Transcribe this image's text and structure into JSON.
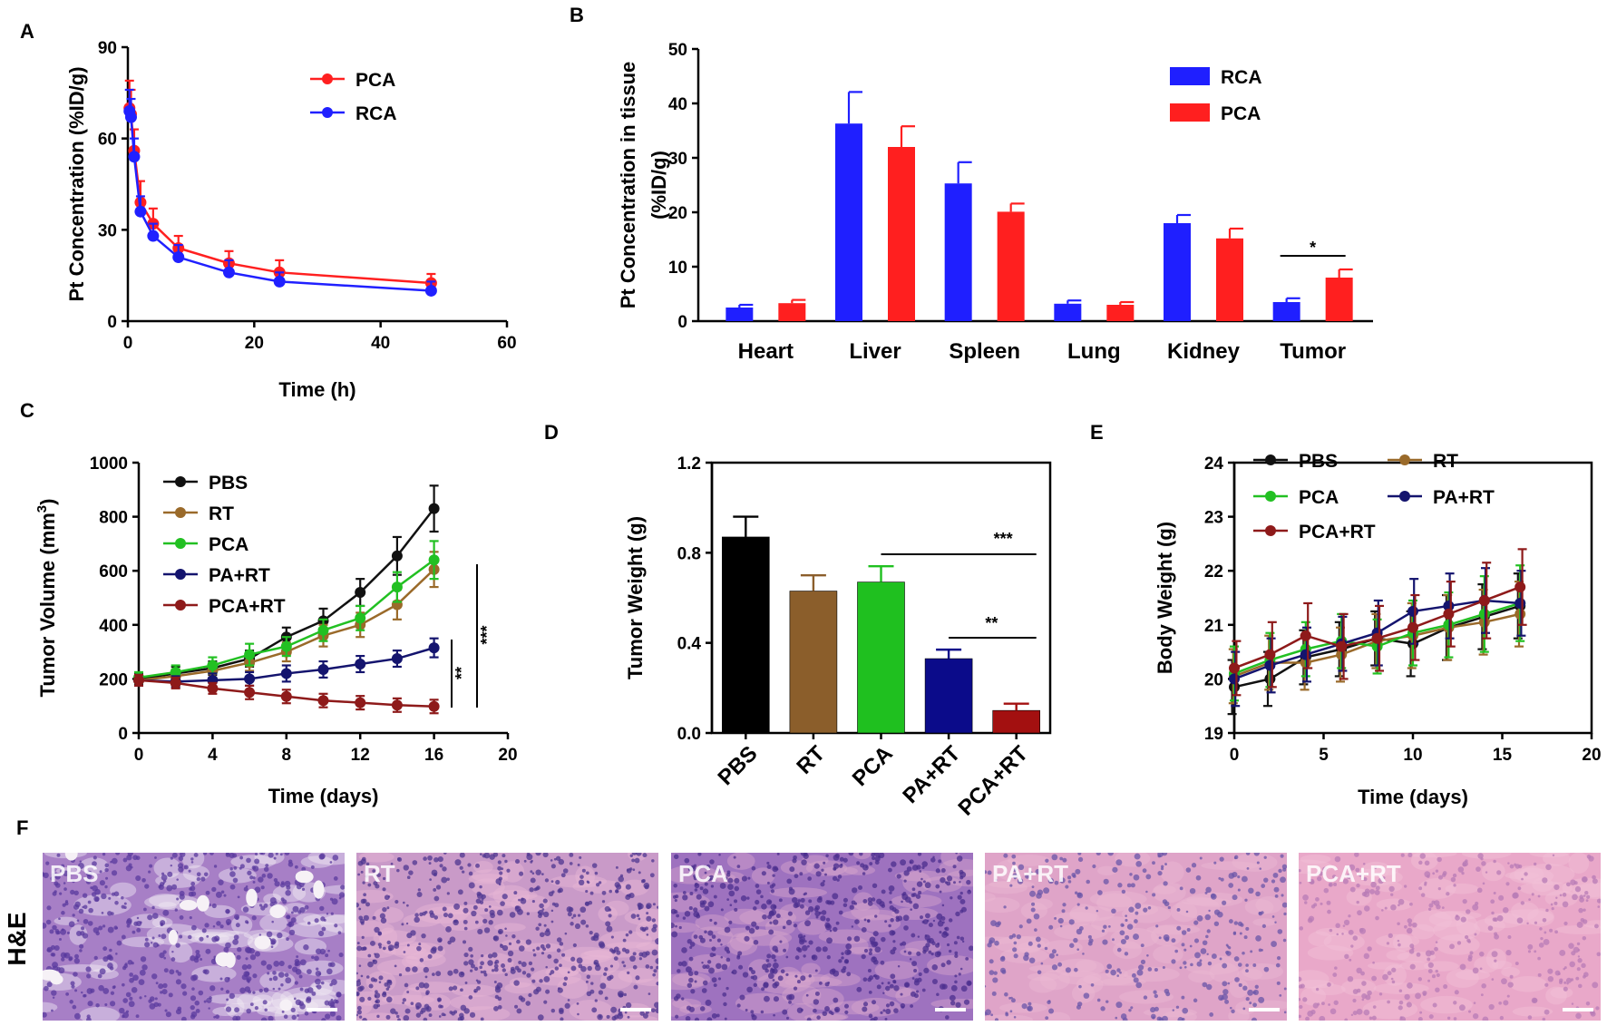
{
  "panel_labels": [
    "A",
    "B",
    "C",
    "D",
    "E",
    "F"
  ],
  "chart_data": [
    {
      "id": "A",
      "type": "line",
      "xlabel": "Time (h)",
      "ylabel": "Pt Concentration (%ID/g)",
      "xlim": [
        0,
        60
      ],
      "ylim": [
        0,
        90
      ],
      "xticks": [
        0,
        20,
        40,
        60
      ],
      "yticks": [
        0,
        30,
        60,
        90
      ],
      "x": [
        0.25,
        0.5,
        1,
        2,
        4,
        8,
        16,
        24,
        48
      ],
      "series": [
        {
          "name": "PCA",
          "color": "#ff2020",
          "values": [
            70,
            68,
            56,
            39,
            32,
            24,
            19,
            16,
            12.5
          ],
          "err": [
            9,
            8,
            7,
            7,
            5,
            4,
            4,
            4,
            3
          ]
        },
        {
          "name": "RCA",
          "color": "#2020ff",
          "values": [
            69,
            67,
            54,
            36,
            28,
            21,
            16,
            13,
            10
          ],
          "err": [
            7,
            6,
            6,
            5,
            4,
            4,
            4,
            3,
            3
          ]
        }
      ],
      "legend_position": "top-right"
    },
    {
      "id": "B",
      "type": "bar",
      "ylabel_lines": [
        "Pt Concentration in tissue",
        "(%ID/g)"
      ],
      "ylim": [
        0,
        50
      ],
      "yticks": [
        0,
        10,
        20,
        30,
        40,
        50
      ],
      "categories": [
        "Heart",
        "Liver",
        "Spleen",
        "Lung",
        "Kidney",
        "Tumor"
      ],
      "series": [
        {
          "name": "RCA",
          "color": "#1f1fff",
          "values": [
            2.5,
            36.3,
            25.3,
            3.2,
            18,
            3.5
          ],
          "err": [
            0.5,
            5.8,
            3.9,
            0.6,
            1.5,
            0.7
          ]
        },
        {
          "name": "PCA",
          "color": "#ff1f1f",
          "values": [
            3.3,
            32,
            20.1,
            3,
            15.2,
            8
          ],
          "err": [
            0.6,
            3.8,
            1.5,
            0.5,
            1.8,
            1.5
          ]
        }
      ],
      "annotations": [
        {
          "text": "*",
          "category": "Tumor"
        }
      ],
      "legend_position": "top-right"
    },
    {
      "id": "C",
      "type": "line",
      "xlabel": "Time (days)",
      "ylabel": "Tumor Volume (mm",
      "ylabel_sup": "3",
      "ylabel_end": ")",
      "xlim": [
        0,
        20
      ],
      "ylim": [
        0,
        1000
      ],
      "xticks": [
        0,
        4,
        8,
        12,
        16,
        20
      ],
      "yticks": [
        0,
        200,
        400,
        600,
        800,
        1000
      ],
      "x": [
        0,
        2,
        4,
        6,
        8,
        10,
        12,
        14,
        16
      ],
      "series": [
        {
          "name": "PBS",
          "color": "#111111",
          "values": [
            200,
            220,
            240,
            275,
            355,
            415,
            520,
            655,
            830
          ],
          "err": [
            20,
            25,
            25,
            30,
            35,
            45,
            50,
            70,
            85
          ]
        },
        {
          "name": "RT",
          "color": "#9a6a2a",
          "values": [
            195,
            210,
            230,
            260,
            300,
            360,
            400,
            475,
            605
          ],
          "err": [
            20,
            25,
            25,
            30,
            35,
            40,
            45,
            55,
            65
          ]
        },
        {
          "name": "PCA",
          "color": "#22c022",
          "values": [
            205,
            225,
            250,
            290,
            320,
            380,
            425,
            540,
            640
          ],
          "err": [
            20,
            25,
            30,
            40,
            35,
            40,
            45,
            55,
            70
          ]
        },
        {
          "name": "PA+RT",
          "color": "#14146e",
          "values": [
            195,
            190,
            195,
            200,
            220,
            235,
            255,
            275,
            315
          ],
          "err": [
            20,
            20,
            25,
            25,
            30,
            30,
            30,
            30,
            35
          ]
        },
        {
          "name": "PCA+RT",
          "color": "#8e1a1a",
          "values": [
            195,
            185,
            165,
            150,
            135,
            120,
            112,
            103,
            98
          ],
          "err": [
            20,
            20,
            20,
            25,
            25,
            25,
            25,
            25,
            25
          ]
        }
      ],
      "annotations": [
        {
          "text": "**"
        },
        {
          "text": "***"
        }
      ],
      "legend_position": "top-left"
    },
    {
      "id": "D",
      "type": "bar",
      "ylabel": "Tumor Weight (g)",
      "ylim": [
        0,
        1.2
      ],
      "yticks": [
        0.0,
        0.4,
        0.8,
        1.2
      ],
      "categories": [
        "PBS",
        "RT",
        "PCA",
        "PA+RT",
        "PCA+RT"
      ],
      "values": [
        0.87,
        0.63,
        0.67,
        0.33,
        0.1
      ],
      "err": [
        0.09,
        0.07,
        0.07,
        0.04,
        0.03
      ],
      "colors": [
        "#000000",
        "#8b5e2b",
        "#1fc01f",
        "#0b0b8a",
        "#a31010"
      ],
      "annotations": [
        {
          "text": "***",
          "from": "PCA",
          "to": "PCA+RT"
        },
        {
          "text": "**",
          "from": "PA+RT",
          "to": "PCA+RT"
        }
      ]
    },
    {
      "id": "E",
      "type": "line",
      "xlabel": "Time (days)",
      "ylabel": "Body Weight (g)",
      "xlim": [
        0,
        20
      ],
      "ylim": [
        19,
        24
      ],
      "xticks": [
        0,
        5,
        10,
        15,
        20
      ],
      "yticks": [
        19,
        20,
        21,
        22,
        23,
        24
      ],
      "x": [
        0,
        2,
        4,
        6,
        8,
        10,
        12,
        14,
        16
      ],
      "series": [
        {
          "name": "PBS",
          "color": "#111111",
          "values": [
            19.85,
            20.0,
            20.4,
            20.55,
            20.75,
            20.65,
            20.95,
            21.15,
            21.35
          ],
          "err": [
            0.5,
            0.5,
            0.5,
            0.5,
            0.5,
            0.6,
            0.6,
            0.6,
            0.6
          ]
        },
        {
          "name": "RT",
          "color": "#9a6a2a",
          "values": [
            20.05,
            20.3,
            20.3,
            20.45,
            20.7,
            20.8,
            20.95,
            21.05,
            21.2
          ],
          "err": [
            0.5,
            0.5,
            0.5,
            0.5,
            0.5,
            0.6,
            0.6,
            0.6,
            0.6
          ]
        },
        {
          "name": "PCA",
          "color": "#22c022",
          "values": [
            20.1,
            20.35,
            20.55,
            20.7,
            20.6,
            20.85,
            21.0,
            21.2,
            21.4
          ],
          "err": [
            0.5,
            0.5,
            0.5,
            0.5,
            0.5,
            0.6,
            0.6,
            0.7,
            0.7
          ]
        },
        {
          "name": "PA+RT",
          "color": "#14146e",
          "values": [
            20.0,
            20.25,
            20.45,
            20.65,
            20.85,
            21.25,
            21.35,
            21.45,
            21.4
          ],
          "err": [
            0.5,
            0.5,
            0.5,
            0.5,
            0.6,
            0.6,
            0.6,
            0.6,
            0.6
          ]
        },
        {
          "name": "PCA+RT",
          "color": "#8e1a1a",
          "values": [
            20.2,
            20.45,
            20.8,
            20.6,
            20.75,
            20.95,
            21.2,
            21.45,
            21.7
          ],
          "err": [
            0.5,
            0.6,
            0.6,
            0.6,
            0.6,
            0.6,
            0.6,
            0.7,
            0.7
          ]
        }
      ],
      "legend_position": "top-left"
    }
  ],
  "histology": {
    "row_label": "H&E",
    "panels": [
      {
        "label": "PBS",
        "bg": "#a77fc6",
        "dot": "#5a3a9e",
        "accent": "#f2eaf5"
      },
      {
        "label": "RT",
        "bg": "#c99ac8",
        "dot": "#4e3590",
        "accent": "#e8b9d4"
      },
      {
        "label": "PCA",
        "bg": "#9e72bf",
        "dot": "#4b2f8d",
        "accent": "#d6a6cd"
      },
      {
        "label": "PA+RT",
        "bg": "#dfa4c8",
        "dot": "#6a56a8",
        "accent": "#eab8d3"
      },
      {
        "label": "PCA+RT",
        "bg": "#e9a8c9",
        "dot": "#b77bb6",
        "accent": "#f2c1d7"
      }
    ]
  }
}
